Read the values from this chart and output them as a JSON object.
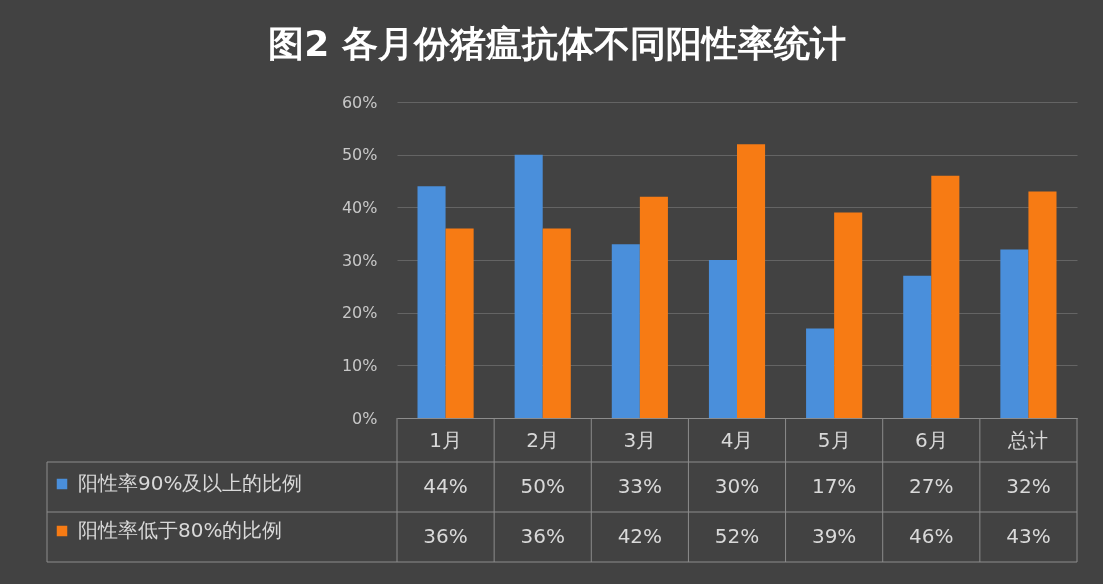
{
  "chart_data": {
    "type": "bar",
    "title": "图2 各月份猪瘟抗体不同阳性率统计",
    "categories": [
      "1月",
      "2月",
      "3月",
      "4月",
      "5月",
      "6月",
      "总计"
    ],
    "series": [
      {
        "name": "阳性率90%及以上的比例",
        "color": "#4a8fdb",
        "values": [
          44,
          50,
          33,
          30,
          17,
          27,
          32
        ],
        "value_labels": [
          "44%",
          "50%",
          "33%",
          "30%",
          "17%",
          "27%",
          "32%"
        ]
      },
      {
        "name": "阳性率低于80%的比例",
        "color": "#f77b14",
        "values": [
          36,
          36,
          42,
          52,
          39,
          46,
          43
        ],
        "value_labels": [
          "36%",
          "36%",
          "42%",
          "52%",
          "39%",
          "46%",
          "43%"
        ]
      }
    ],
    "ylim": [
      0,
      60
    ],
    "yticks": [
      {
        "value": 0,
        "label": "0%"
      },
      {
        "value": 10,
        "label": "10%"
      },
      {
        "value": 20,
        "label": "20%"
      },
      {
        "value": 30,
        "label": "30%"
      },
      {
        "value": 40,
        "label": "40%"
      },
      {
        "value": 50,
        "label": "50%"
      },
      {
        "value": 60,
        "label": "60%"
      }
    ],
    "grid": "y",
    "legend": "bottom left"
  }
}
